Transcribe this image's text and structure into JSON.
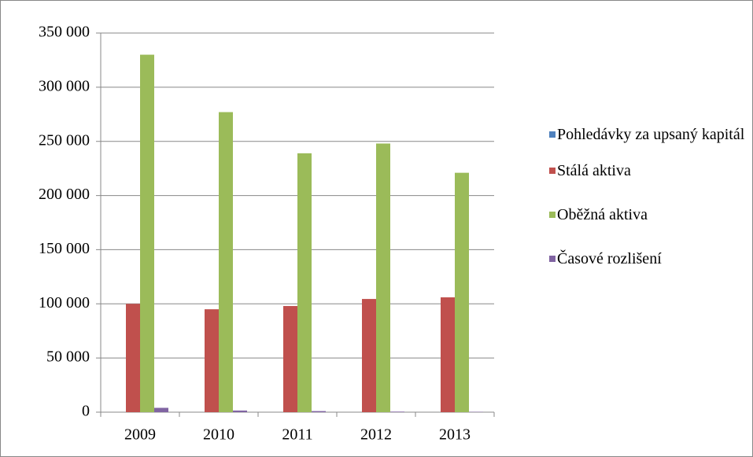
{
  "chart_data": {
    "type": "bar",
    "categories": [
      "2009",
      "2010",
      "2011",
      "2012",
      "2013"
    ],
    "series": [
      {
        "name": "Pohledávky za upsaný kapitál",
        "color": "#4f81bd",
        "values": [
          0,
          0,
          0,
          0,
          0
        ]
      },
      {
        "name": "Stálá aktiva",
        "color": "#c0504d",
        "values": [
          100000,
          95000,
          98000,
          104500,
          106000
        ]
      },
      {
        "name": "Oběžná aktiva",
        "color": "#9bbb59",
        "values": [
          330000,
          277000,
          239000,
          248000,
          221000
        ]
      },
      {
        "name": "Časové rozlišení",
        "color": "#8064a2",
        "values": [
          4000,
          1500,
          1000,
          500,
          300
        ]
      }
    ],
    "ylim": [
      0,
      350000
    ],
    "yticks": [
      {
        "value": 0,
        "label": "0"
      },
      {
        "value": 50000,
        "label": "50 000"
      },
      {
        "value": 100000,
        "label": "100 000"
      },
      {
        "value": 150000,
        "label": "150 000"
      },
      {
        "value": 200000,
        "label": "200 000"
      },
      {
        "value": 250000,
        "label": "250 000"
      },
      {
        "value": 300000,
        "label": "300 000"
      },
      {
        "value": 350000,
        "label": "350 000"
      }
    ],
    "grid": true
  }
}
